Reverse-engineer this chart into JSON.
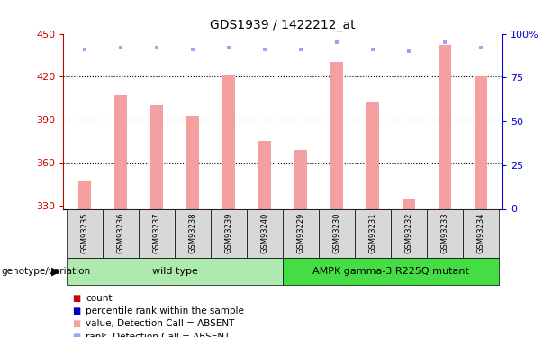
{
  "title": "GDS1939 / 1422212_at",
  "samples": [
    "GSM93235",
    "GSM93236",
    "GSM93237",
    "GSM93238",
    "GSM93239",
    "GSM93240",
    "GSM93229",
    "GSM93230",
    "GSM93231",
    "GSM93232",
    "GSM93233",
    "GSM93234"
  ],
  "bar_values": [
    348,
    407,
    400,
    393,
    421,
    375,
    369,
    430,
    403,
    335,
    442,
    420
  ],
  "rank_values": [
    91,
    92,
    92,
    91,
    92,
    91,
    91,
    95,
    91,
    90,
    95,
    92
  ],
  "bar_bottom": 328,
  "ylim_left": [
    328,
    450
  ],
  "ylim_right": [
    0,
    100
  ],
  "yticks_left": [
    330,
    360,
    390,
    420,
    450
  ],
  "yticks_right": [
    0,
    25,
    50,
    75,
    100
  ],
  "bar_color": "#f4a0a0",
  "rank_color": "#a0a0f4",
  "wild_type_label": "wild type",
  "mutant_label": "AMPK gamma-3 R225Q mutant",
  "wild_type_color": "#aeeaae",
  "mutant_color": "#44dd44",
  "genotype_label": "genotype/variation",
  "legend_items": [
    {
      "label": "count",
      "color": "#cc0000"
    },
    {
      "label": "percentile rank within the sample",
      "color": "#0000cc"
    },
    {
      "label": "value, Detection Call = ABSENT",
      "color": "#f4a0a0"
    },
    {
      "label": "rank, Detection Call = ABSENT",
      "color": "#a0a0f4"
    }
  ],
  "ax_color_left": "#cc0000",
  "ax_color_right": "#0000cc",
  "bar_width": 0.35
}
